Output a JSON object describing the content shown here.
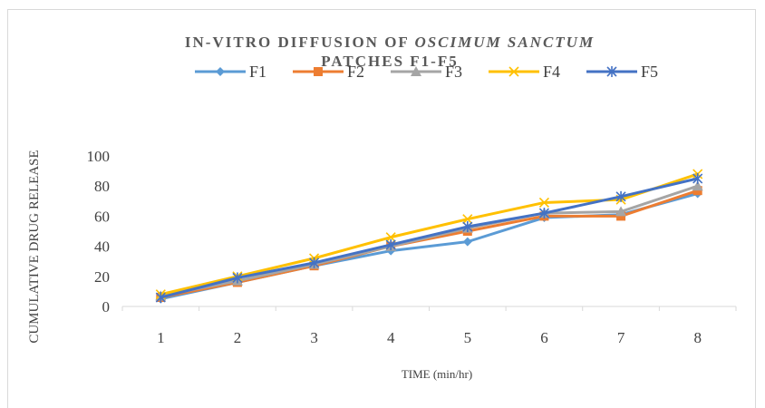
{
  "chart_data": {
    "type": "line",
    "title_part1": "IN-VITRO DIFFUSION OF ",
    "title_part2": "OSCIMUM SANCTUM",
    "title_line2": "PATCHES F1-F5",
    "xlabel": "TIME (min/hr)",
    "ylabel": "CUMULATIVE DRUG RELEASE",
    "categories": [
      "1",
      "2",
      "3",
      "4",
      "5",
      "6",
      "7",
      "8"
    ],
    "ylim": [
      0,
      100
    ],
    "yticks": [
      "0",
      "20",
      "40",
      "60",
      "80",
      "100"
    ],
    "grid": false,
    "legend_position": "top",
    "series": [
      {
        "name": "F1",
        "color": "#5b9bd5",
        "marker": "diamond",
        "values": [
          5,
          16,
          27,
          37,
          43,
          59,
          61,
          75
        ]
      },
      {
        "name": "F2",
        "color": "#ed7d31",
        "marker": "square",
        "values": [
          6,
          16,
          27,
          40,
          50,
          60,
          60,
          77
        ]
      },
      {
        "name": "F3",
        "color": "#a5a5a5",
        "marker": "triangle",
        "values": [
          7,
          17,
          28,
          40,
          52,
          62,
          63,
          80
        ]
      },
      {
        "name": "F4",
        "color": "#ffc000",
        "marker": "x",
        "values": [
          8,
          20,
          32,
          46,
          58,
          69,
          71,
          88
        ]
      },
      {
        "name": "F5",
        "color": "#4472c4",
        "marker": "star",
        "values": [
          6,
          19,
          29,
          41,
          53,
          62,
          73,
          85
        ]
      }
    ]
  }
}
